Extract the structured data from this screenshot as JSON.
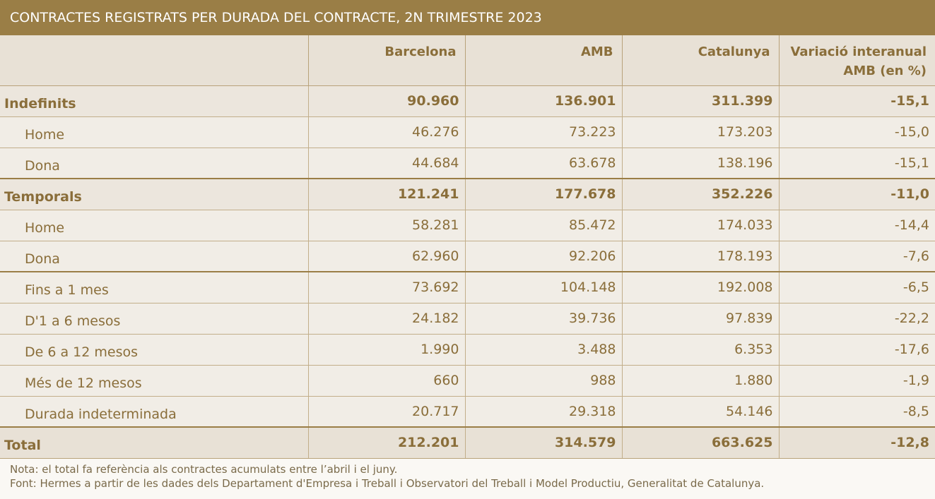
{
  "title": "CONTRACTES REGISTRATS PER DURADA DEL CONTRACTE, 2N TRIMESTRE 2023",
  "columns": [
    "",
    "Barcelona",
    "AMB",
    "Catalunya",
    "Variació interanual AMB (en %)"
  ],
  "header_last_line1": "Variació interanual",
  "header_last_line2": "AMB (en %)",
  "rows": [
    {
      "label": "Indefinits",
      "type": "group",
      "values": [
        "90.960",
        "136.901",
        "311.399",
        "-15,1"
      ]
    },
    {
      "label": "Home",
      "type": "sub",
      "values": [
        "46.276",
        "73.223",
        "173.203",
        "-15,0"
      ]
    },
    {
      "label": "Dona",
      "type": "sub",
      "values": [
        "44.684",
        "63.678",
        "138.196",
        "-15,1"
      ]
    },
    {
      "label": "Temporals",
      "type": "group",
      "values": [
        "121.241",
        "177.678",
        "352.226",
        "-11,0"
      ]
    },
    {
      "label": "Home",
      "type": "sub",
      "values": [
        "58.281",
        "85.472",
        "174.033",
        "-14,4"
      ]
    },
    {
      "label": "Dona",
      "type": "sub",
      "values": [
        "62.960",
        "92.206",
        "178.193",
        "-7,6"
      ]
    },
    {
      "label": "Fins a 1 mes",
      "type": "sub",
      "values": [
        "73.692",
        "104.148",
        "192.008",
        "-6,5"
      ]
    },
    {
      "label": "D'1 a 6 mesos",
      "type": "sub",
      "values": [
        "24.182",
        "39.736",
        "97.839",
        "-22,2"
      ]
    },
    {
      "label": "De 6 a 12 mesos",
      "type": "sub",
      "values": [
        "1.990",
        "3.488",
        "6.353",
        "-17,6"
      ]
    },
    {
      "label": "Més de 12 mesos",
      "type": "sub",
      "values": [
        "660",
        "988",
        "1.880",
        "-1,9"
      ]
    },
    {
      "label": "Durada indeterminada",
      "type": "sub",
      "values": [
        "20.717",
        "29.318",
        "54.146",
        "-8,5"
      ]
    },
    {
      "label": "Total",
      "type": "total",
      "values": [
        "212.201",
        "314.579",
        "663.625",
        "-12,8"
      ]
    }
  ],
  "notes": {
    "nota": "Nota: el total fa referència als contractes acumulats entre l’abril i el juny.",
    "font": "Font: Hermes a partir de les dades dels Departament d'Empresa i Treball i Observatori del Treball i Model Productiu, Generalitat de Catalunya."
  },
  "colors": {
    "accent": "#9a7e46",
    "text": "#8a6e3a",
    "header_bg": "#e8e1d6"
  }
}
